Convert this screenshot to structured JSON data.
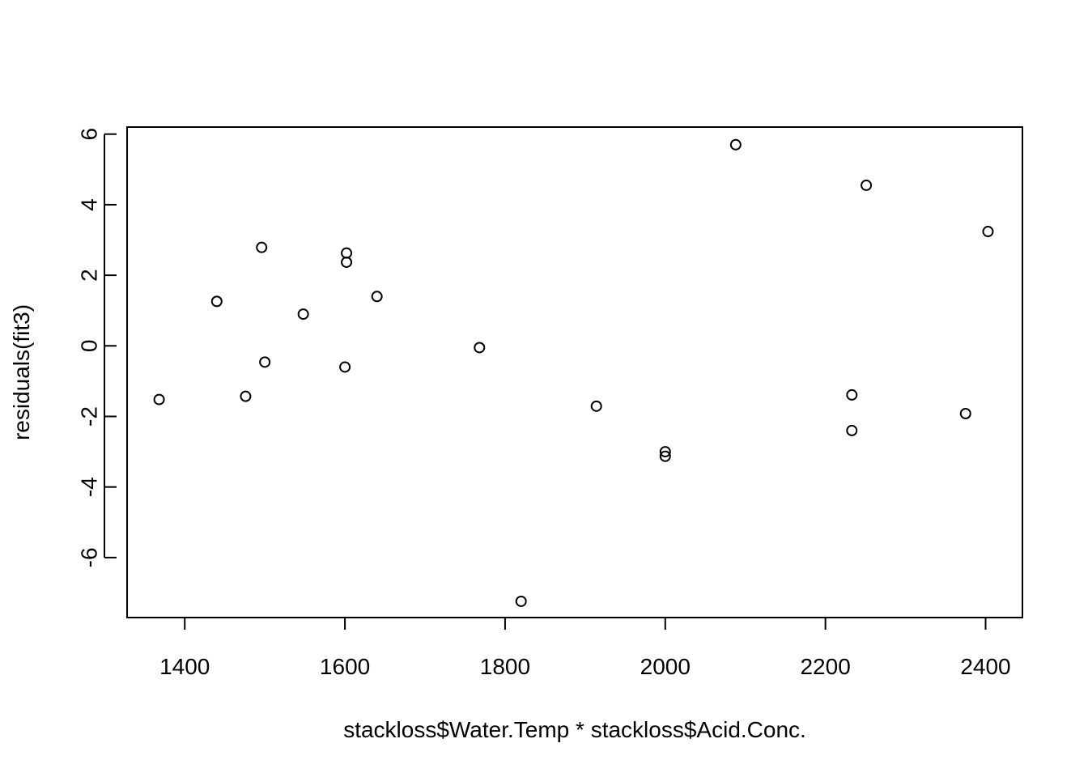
{
  "chart_data": {
    "type": "scatter",
    "title": "",
    "xlabel": "stackloss$Water.Temp * stackloss$Acid.Conc.",
    "ylabel": "residuals(fit3)",
    "xlim": [
      1328,
      2446
    ],
    "ylim": [
      -7.7,
      6.2
    ],
    "x_ticks": [
      1400,
      1600,
      1800,
      2000,
      2200,
      2400
    ],
    "x_tick_labels": [
      "1400",
      "1600",
      "1800",
      "2000",
      "2200",
      "2400"
    ],
    "y_ticks": [
      -6,
      -4,
      -2,
      0,
      2,
      4,
      6
    ],
    "y_tick_labels": [
      "-6",
      "-4",
      "-2",
      "0",
      "2",
      "4",
      "6"
    ],
    "grid": false,
    "marker": "open-circle",
    "colors": {
      "points": "#000000",
      "axes": "#000000",
      "background": "#ffffff"
    },
    "points": [
      {
        "x": 1368,
        "y": -1.52
      },
      {
        "x": 1440,
        "y": 1.26
      },
      {
        "x": 1476,
        "y": -1.43
      },
      {
        "x": 1496,
        "y": 2.79
      },
      {
        "x": 1500,
        "y": -0.46
      },
      {
        "x": 1548,
        "y": 0.9
      },
      {
        "x": 1600,
        "y": -0.6
      },
      {
        "x": 1602,
        "y": 2.63
      },
      {
        "x": 1602,
        "y": 2.37
      },
      {
        "x": 1640,
        "y": 1.4
      },
      {
        "x": 1768,
        "y": -0.05
      },
      {
        "x": 1820,
        "y": -7.24
      },
      {
        "x": 1914,
        "y": -1.71
      },
      {
        "x": 2000,
        "y": -3.0
      },
      {
        "x": 2000,
        "y": -3.13
      },
      {
        "x": 2088,
        "y": 5.7
      },
      {
        "x": 2233,
        "y": -1.39
      },
      {
        "x": 2233,
        "y": -2.4
      },
      {
        "x": 2251,
        "y": 4.55
      },
      {
        "x": 2375,
        "y": -1.92
      },
      {
        "x": 2403,
        "y": 3.24
      }
    ]
  }
}
